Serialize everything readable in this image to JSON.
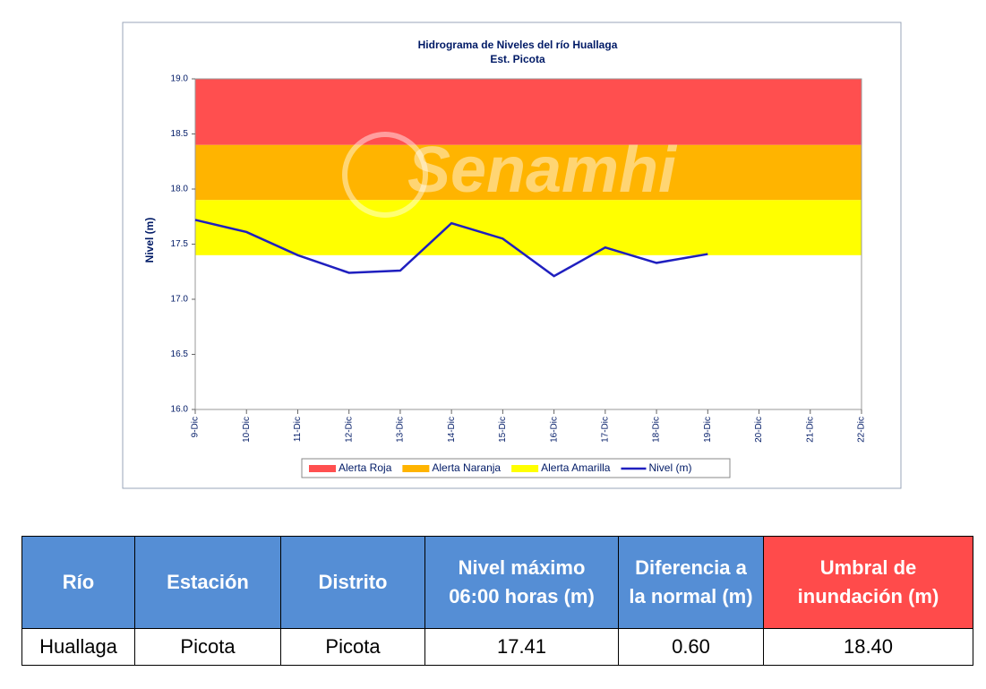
{
  "chart_data": {
    "type": "line",
    "title": "Hidrograma de Niveles del río Huallaga",
    "subtitle": "Est. Picota",
    "watermark": "Senamhi",
    "y_label": "Nivel (m)",
    "categories": [
      "9-Dic",
      "10-Dic",
      "11-Dic",
      "12-Dic",
      "13-Dic",
      "14-Dic",
      "15-Dic",
      "16-Dic",
      "17-Dic",
      "18-Dic",
      "19-Dic",
      "20-Dic",
      "21-Dic",
      "22-Dic"
    ],
    "series": [
      {
        "name": "Nivel (m)",
        "color": "#1f1fbf",
        "values": [
          17.72,
          17.61,
          17.4,
          17.24,
          17.26,
          17.69,
          17.55,
          17.21,
          17.47,
          17.33,
          17.41,
          null,
          null,
          null
        ]
      }
    ],
    "bands": [
      {
        "name": "Alerta Roja",
        "color": "#ff4f4f",
        "from": 18.4,
        "to": 19.0
      },
      {
        "name": "Alerta Naranja",
        "color": "#ffb400",
        "from": 17.9,
        "to": 18.4
      },
      {
        "name": "Alerta Amarilla",
        "color": "#ffff00",
        "from": 17.4,
        "to": 17.9
      }
    ],
    "ylim": [
      16,
      19
    ],
    "yticks": [
      {
        "value": 16,
        "label": "16.0"
      },
      {
        "value": 16.5,
        "label": "16.5"
      },
      {
        "value": 17,
        "label": "17.0"
      },
      {
        "value": 17.5,
        "label": "17.5"
      },
      {
        "value": 18,
        "label": "18.0"
      },
      {
        "value": 18.5,
        "label": "18.5"
      },
      {
        "value": 19,
        "label": "19.0"
      }
    ],
    "legend": "bottom"
  },
  "table": {
    "header": [
      "Río",
      "Estación",
      "Distrito",
      "Nivel máximo 06:00 horas (m)",
      "Diferencia a la normal (m)",
      "Umbral de inundación (m)"
    ],
    "rows": [
      [
        "Huallaga",
        "Picota",
        "Picota",
        "17.41",
        "0.60",
        "18.40"
      ]
    ]
  }
}
